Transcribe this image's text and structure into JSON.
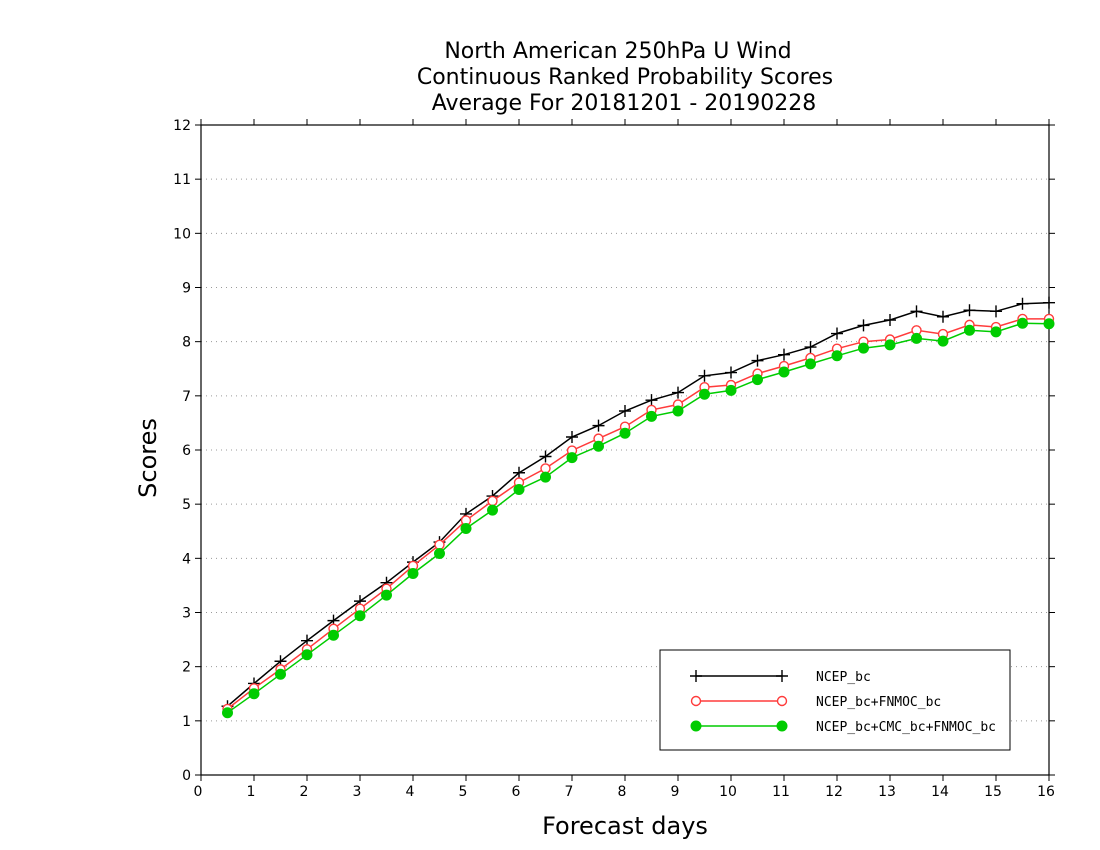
{
  "chart_data": {
    "type": "line",
    "title": [
      "North American 250hPa U Wind",
      "Continuous Ranked Probability Scores",
      "Average For 20181201 - 20190228"
    ],
    "xlabel": "Forecast days",
    "ylabel": "Scores",
    "xlim": [
      0,
      16
    ],
    "ylim": [
      0,
      12
    ],
    "xticks": [
      "0",
      "1",
      "2",
      "3",
      "4",
      "5",
      "6",
      "7",
      "8",
      "9",
      "10",
      "11",
      "12",
      "13",
      "14",
      "15",
      "16"
    ],
    "yticks": [
      "0",
      "1",
      "2",
      "3",
      "4",
      "5",
      "6",
      "7",
      "8",
      "9",
      "10",
      "11",
      "12"
    ],
    "grid": "horizontal dotted",
    "legend_position": "bottom-right",
    "x": [
      0.5,
      1,
      1.5,
      2,
      2.5,
      3,
      3.5,
      4,
      4.5,
      5,
      5.5,
      6,
      6.5,
      7,
      7.5,
      8,
      8.5,
      9,
      9.5,
      10,
      10.5,
      11,
      11.5,
      12,
      12.5,
      13,
      13.5,
      14,
      14.5,
      15,
      15.5,
      16
    ],
    "series": [
      {
        "name": "NCEP_bc",
        "color": "#000000",
        "marker": "plus",
        "values": [
          1.27,
          1.69,
          2.1,
          2.48,
          2.85,
          3.21,
          3.55,
          3.93,
          4.3,
          4.82,
          5.15,
          5.58,
          5.88,
          6.24,
          6.45,
          6.72,
          6.92,
          7.06,
          7.37,
          7.43,
          7.65,
          7.76,
          7.9,
          8.15,
          8.3,
          8.4,
          8.56,
          8.46,
          8.58,
          8.56,
          8.7,
          8.72
        ]
      },
      {
        "name": "NCEP_bc+FNMOC_bc",
        "color": "#ff3b3b",
        "marker": "open-circle",
        "values": [
          1.22,
          1.6,
          1.95,
          2.32,
          2.7,
          3.07,
          3.44,
          3.86,
          4.25,
          4.7,
          5.06,
          5.4,
          5.66,
          5.99,
          6.21,
          6.43,
          6.74,
          6.84,
          7.16,
          7.2,
          7.41,
          7.55,
          7.7,
          7.87,
          8.0,
          8.04,
          8.21,
          8.14,
          8.31,
          8.27,
          8.42,
          8.42
        ]
      },
      {
        "name": "NCEP_bc+CMC_bc+FNMOC_bc",
        "color": "#00cc00",
        "marker": "filled-circle",
        "values": [
          1.15,
          1.5,
          1.86,
          2.22,
          2.58,
          2.94,
          3.32,
          3.72,
          4.09,
          4.55,
          4.89,
          5.27,
          5.5,
          5.86,
          6.07,
          6.31,
          6.62,
          6.72,
          7.03,
          7.1,
          7.3,
          7.44,
          7.59,
          7.74,
          7.88,
          7.94,
          8.06,
          8.01,
          8.21,
          8.18,
          8.34,
          8.33
        ]
      }
    ]
  }
}
